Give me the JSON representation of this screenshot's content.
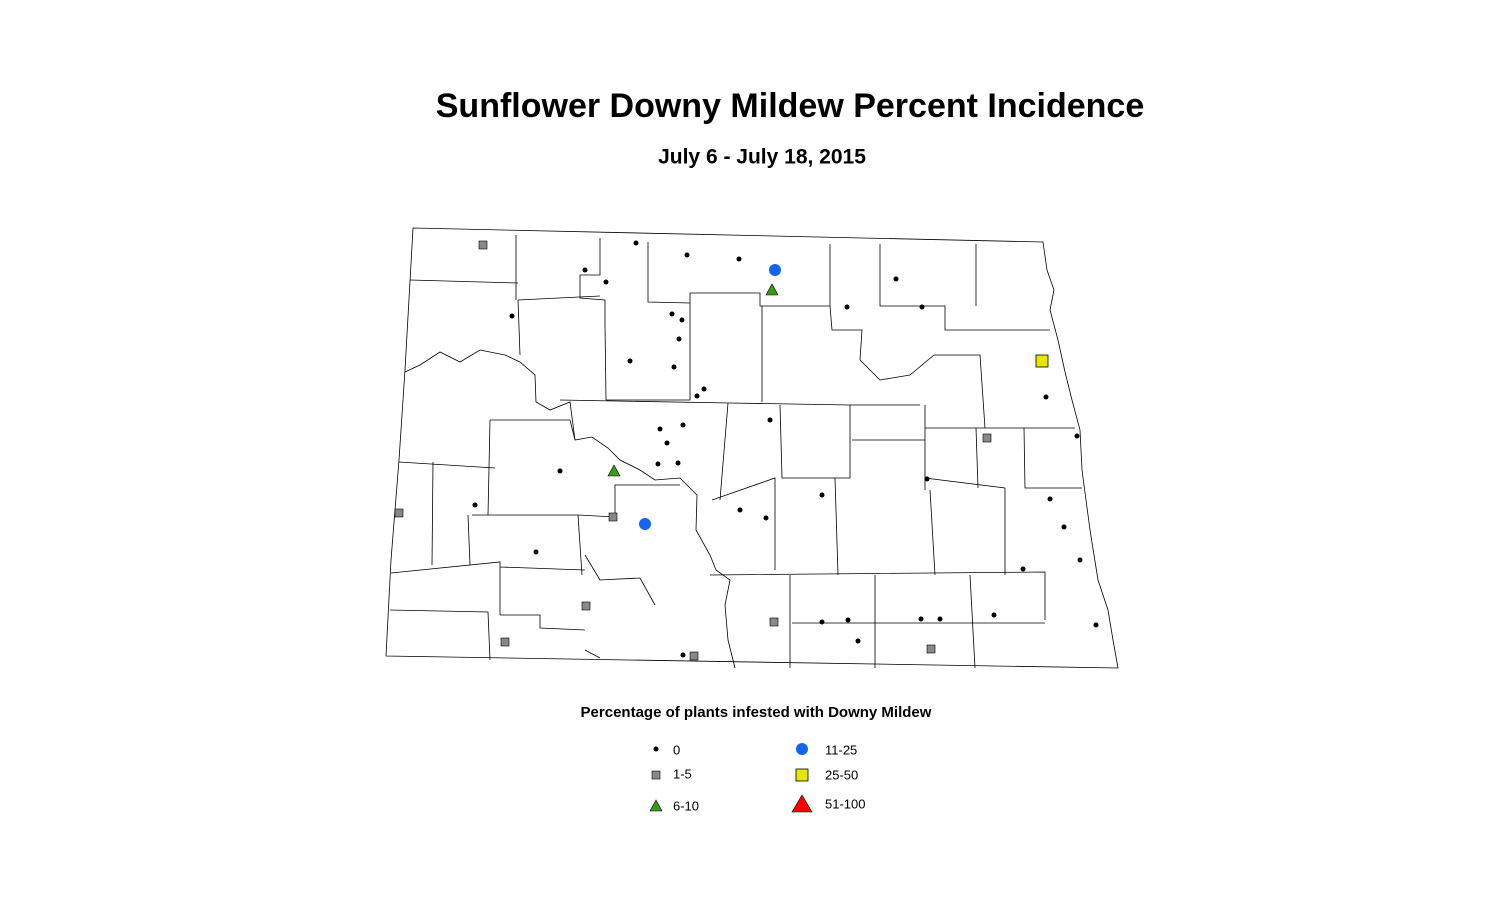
{
  "header": {
    "title": "Sunflower Downy Mildew Percent Incidence",
    "subtitle": "July 6 - July 18, 2015"
  },
  "legend": {
    "title": "Percentage of plants infested with Downy Mildew",
    "items": [
      {
        "label": "0"
      },
      {
        "label": "1-5"
      },
      {
        "label": "6-10"
      },
      {
        "label": "11-25"
      },
      {
        "label": "25-50"
      },
      {
        "label": "51-100"
      }
    ]
  }
}
